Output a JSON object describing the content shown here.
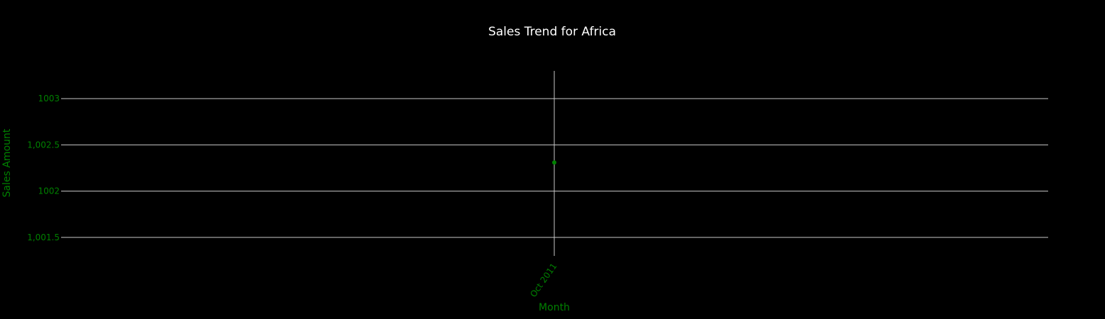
{
  "chart_data": {
    "type": "scatter",
    "title": "Sales Trend for Africa",
    "xlabel": "Month",
    "ylabel": "Sales Amount",
    "x": [
      "Oct 2011"
    ],
    "x_tick_labels": [
      "Oct 2011"
    ],
    "y": [
      1002.31
    ],
    "ylim": [
      1001.3,
      1003.3
    ],
    "y_ticks": [
      1001.5,
      1002,
      1002.5,
      1003
    ],
    "y_tick_labels": [
      "1,001.5",
      "1002",
      "1,002.5",
      "1003"
    ],
    "grid": true,
    "legend": "none"
  },
  "colors": {
    "background": "#000000",
    "title": "#ffffff",
    "axis_text": "#008000",
    "grid": "#c8c8c8",
    "marker": "#008000"
  }
}
